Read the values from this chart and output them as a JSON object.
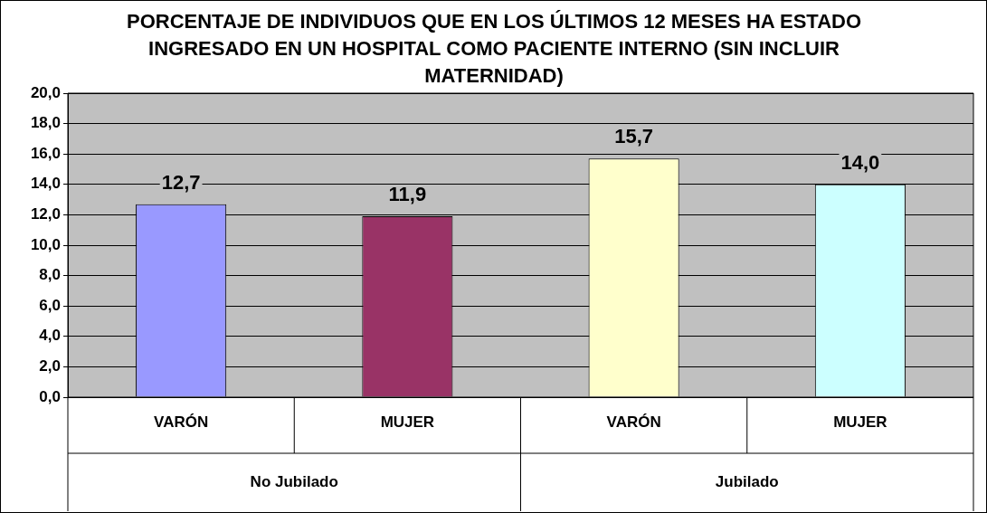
{
  "chart_data": {
    "type": "bar",
    "title": "PORCENTAJE DE INDIVIDUOS QUE EN LOS ÚLTIMOS 12 MESES HA ESTADO INGRESADO EN UN HOSPITAL COMO PACIENTE INTERNO (SIN INCLUIR MATERNIDAD)",
    "categories": [
      "VARÓN",
      "MUJER",
      "VARÓN",
      "MUJER"
    ],
    "values": [
      12.7,
      11.9,
      15.7,
      14.0
    ],
    "colors": [
      "#9999ff",
      "#993366",
      "#ffffcc",
      "#ccffff"
    ],
    "ylim": [
      0,
      20
    ],
    "yticks": [
      {
        "value": 0,
        "label": "0,0"
      },
      {
        "value": 2,
        "label": "2,0"
      },
      {
        "value": 4,
        "label": "4,0"
      },
      {
        "value": 6,
        "label": "6,0"
      },
      {
        "value": 8,
        "label": "8,0"
      },
      {
        "value": 10,
        "label": "10,0"
      },
      {
        "value": 12,
        "label": "12,0"
      },
      {
        "value": 14,
        "label": "14,0"
      },
      {
        "value": 16,
        "label": "16,0"
      },
      {
        "value": 18,
        "label": "18,0"
      },
      {
        "value": 20,
        "label": "20,0"
      }
    ],
    "grid": "y",
    "value_labels": [
      "12,7",
      "11,9",
      "15,7",
      "14,0"
    ],
    "annotations": [
      "No Jubilado",
      "Jubilado"
    ]
  }
}
